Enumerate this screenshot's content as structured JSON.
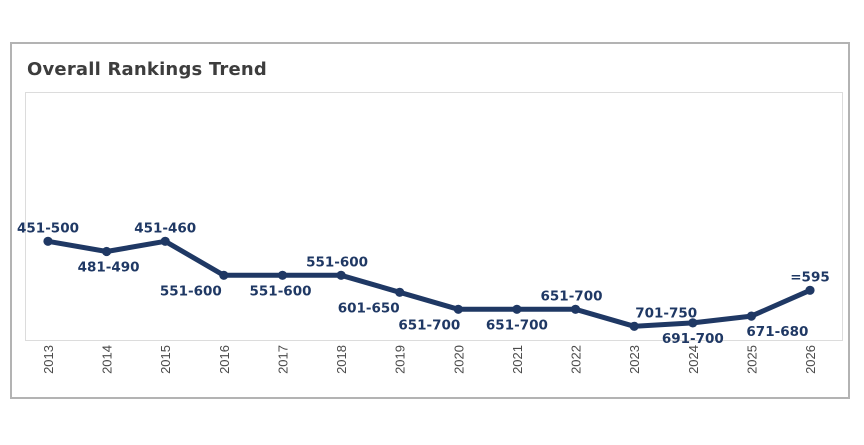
{
  "title": "Overall Rankings Trend",
  "colors": {
    "line": "#1f3864",
    "marker": "#1f3864",
    "data_label": "#1f3864",
    "title_text": "#3d3d3d",
    "axis_text": "#4a4a4a",
    "frame_border": "#b3b3b3",
    "plot_border": "#dcdcdc",
    "background": "#ffffff"
  },
  "chart_data": {
    "type": "line",
    "title": "Overall Rankings Trend",
    "xlabel": "",
    "ylabel": "",
    "x": [
      "2013",
      "2014",
      "2015",
      "2016",
      "2017",
      "2018",
      "2019",
      "2020",
      "2021",
      "2022",
      "2023",
      "2024",
      "2025",
      "2026"
    ],
    "values": [
      451,
      481,
      451,
      551,
      551,
      551,
      601,
      651,
      651,
      651,
      701,
      691,
      671,
      595
    ],
    "point_labels": [
      "451-500",
      "481-490",
      "451-460",
      "551-600",
      "551-600",
      "551-600",
      "601-650",
      "651-700",
      "651-700",
      "651-700",
      "701-750",
      "691-700",
      "671-680",
      "=595"
    ],
    "label_positions": [
      "above",
      "below",
      "above",
      "below",
      "below",
      "above",
      "below",
      "below",
      "below",
      "above",
      "above",
      "below",
      "below",
      "above"
    ],
    "label_dx": [
      0,
      2,
      0,
      -33,
      -2,
      -4,
      -31,
      -29,
      0,
      -4,
      32,
      0,
      26,
      0
    ],
    "y_axis": {
      "min": 0,
      "max": 750,
      "inverted_rank_axis": true,
      "visible": false
    },
    "x_tick_rotation": -90,
    "grid": false,
    "legend": false,
    "series_name": "Overall Rank"
  }
}
